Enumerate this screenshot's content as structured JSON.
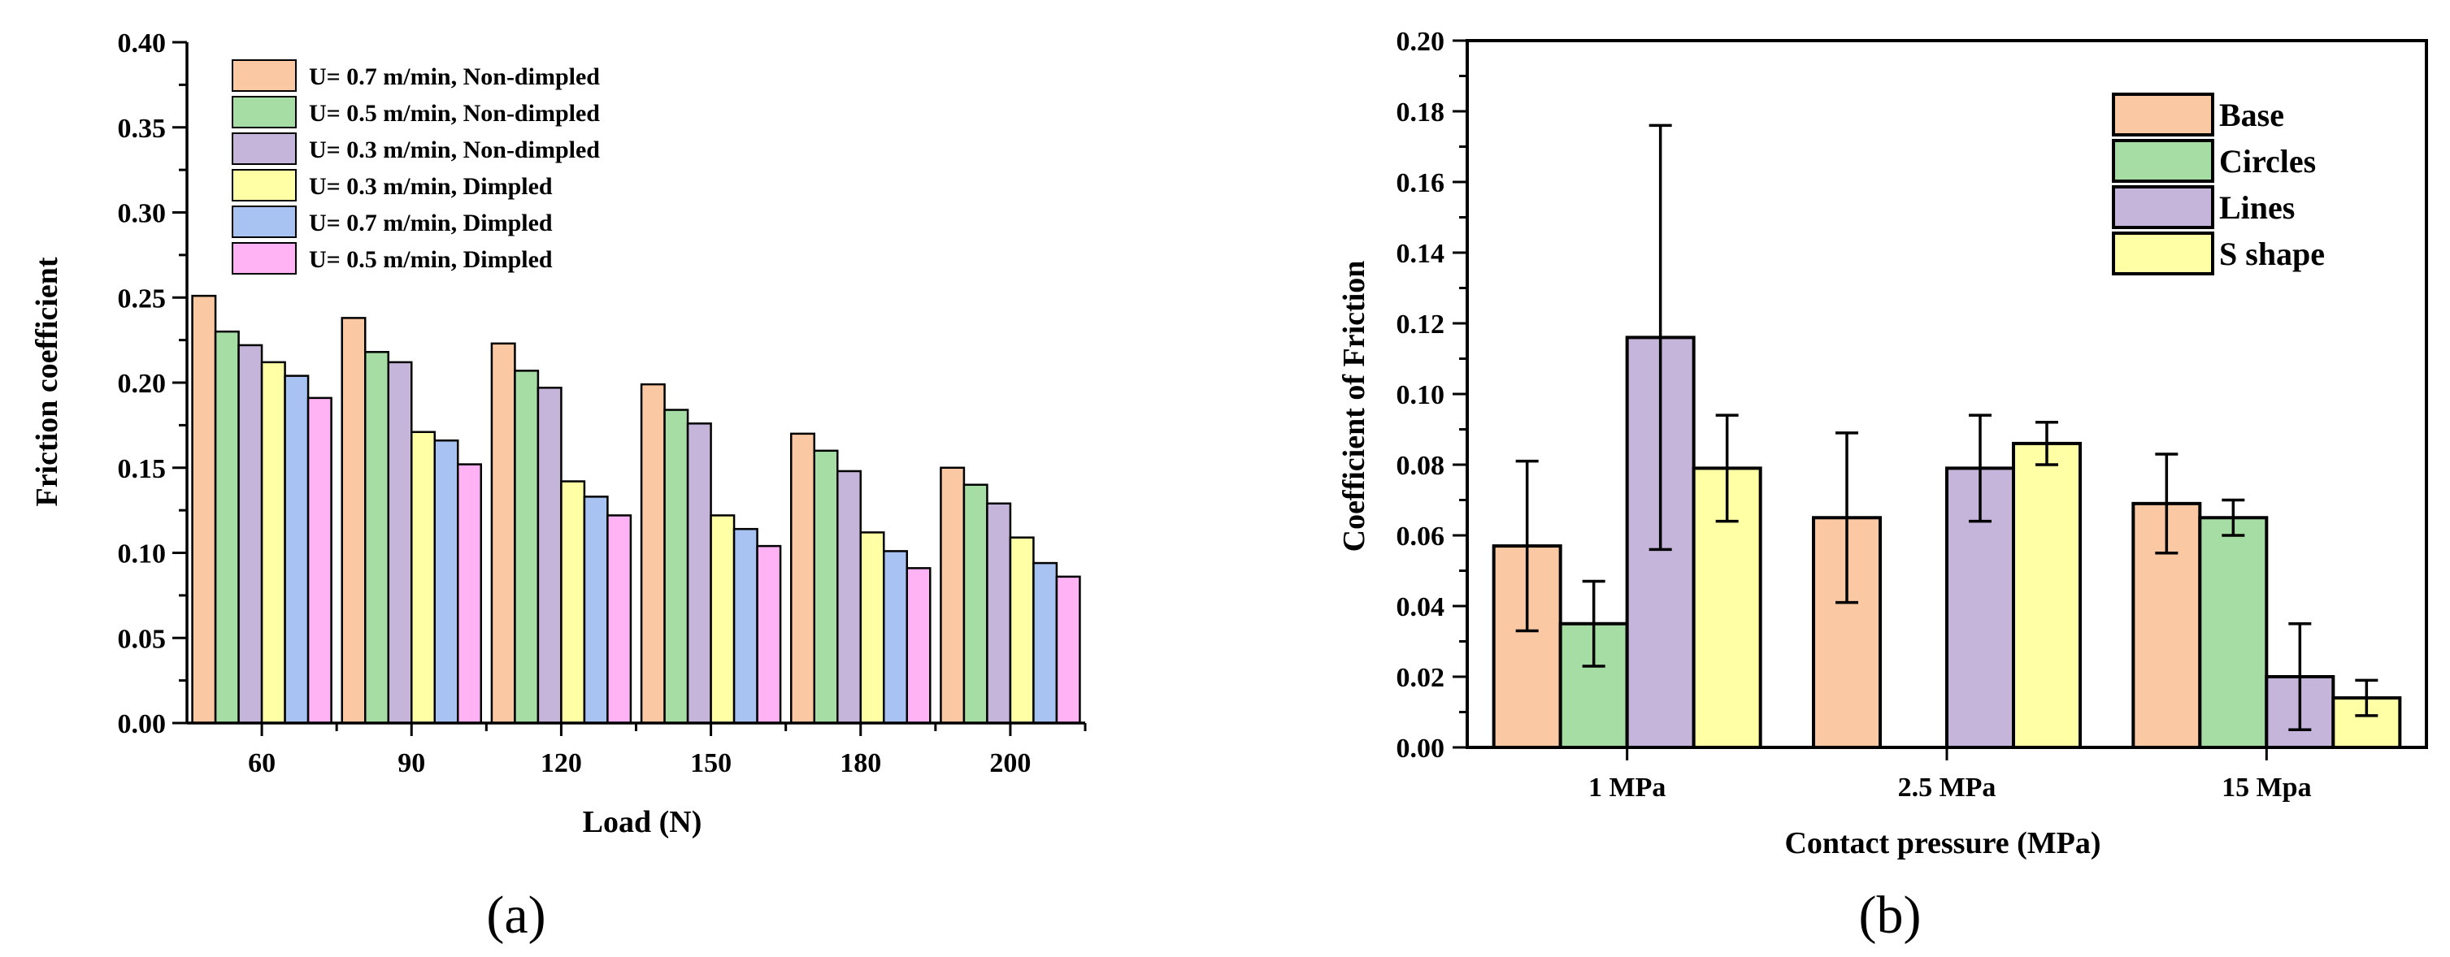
{
  "chart_data": [
    {
      "type": "bar",
      "panel_label": "(a)",
      "title": "",
      "xlabel": "Load (N)",
      "ylabel": "Friction coefficient",
      "ylim": [
        0,
        0.4
      ],
      "yticks": [
        "0.00",
        "0.05",
        "0.10",
        "0.15",
        "0.20",
        "0.25",
        "0.30",
        "0.35",
        "0.40"
      ],
      "categories": [
        "60",
        "90",
        "120",
        "150",
        "180",
        "200"
      ],
      "legend_position": "top-left",
      "series": [
        {
          "name": "U= 0.7 m/min, Non-dimpled",
          "color": "#FAC8A2",
          "values": [
            0.251,
            0.238,
            0.223,
            0.199,
            0.17,
            0.15
          ]
        },
        {
          "name": "U= 0.5 m/min, Non-dimpled",
          "color": "#A6DDA4",
          "values": [
            0.23,
            0.218,
            0.207,
            0.184,
            0.16,
            0.14
          ]
        },
        {
          "name": "U= 0.3 m/min, Non-dimpled",
          "color": "#C6B5DB",
          "values": [
            0.222,
            0.212,
            0.197,
            0.176,
            0.148,
            0.129
          ]
        },
        {
          "name": "U= 0.3 m/min, Dimpled",
          "color": "#FFFFA6",
          "values": [
            0.212,
            0.171,
            0.142,
            0.122,
            0.112,
            0.109
          ]
        },
        {
          "name": "U= 0.7 m/min, Dimpled",
          "color": "#A8C3F2",
          "values": [
            0.204,
            0.166,
            0.133,
            0.114,
            0.101,
            0.094
          ]
        },
        {
          "name": "U= 0.5 m/min, Dimpled",
          "color": "#FFB3F5",
          "values": [
            0.191,
            0.152,
            0.122,
            0.104,
            0.091,
            0.086
          ]
        }
      ]
    },
    {
      "type": "bar",
      "panel_label": "(b)",
      "title": "",
      "xlabel": "Contact pressure (MPa)",
      "ylabel": "Coefficient of Friction",
      "ylim": [
        0,
        0.2
      ],
      "yticks": [
        "0.00",
        "0.02",
        "0.04",
        "0.06",
        "0.08",
        "0.10",
        "0.12",
        "0.14",
        "0.16",
        "0.18",
        "0.20"
      ],
      "categories": [
        "1 MPa",
        "2.5 MPa",
        "15 Mpa"
      ],
      "legend_position": "top-right",
      "series": [
        {
          "name": "Base",
          "color": "#FAC8A2",
          "values": [
            0.057,
            0.065,
            0.069
          ],
          "errors": [
            0.024,
            0.024,
            0.014
          ]
        },
        {
          "name": "Circles",
          "color": "#A6DDA4",
          "values": [
            0.035,
            0,
            0.065
          ],
          "errors": [
            0.012,
            0,
            0.005
          ]
        },
        {
          "name": "Lines",
          "color": "#C6B5DB",
          "values": [
            0.116,
            0.079,
            0.02
          ],
          "errors": [
            0.06,
            0.015,
            0.015
          ]
        },
        {
          "name": "S shape",
          "color": "#FFFFA6",
          "values": [
            0.079,
            0.086,
            0.014
          ],
          "errors": [
            0.015,
            0.006,
            0.005
          ]
        }
      ]
    }
  ]
}
